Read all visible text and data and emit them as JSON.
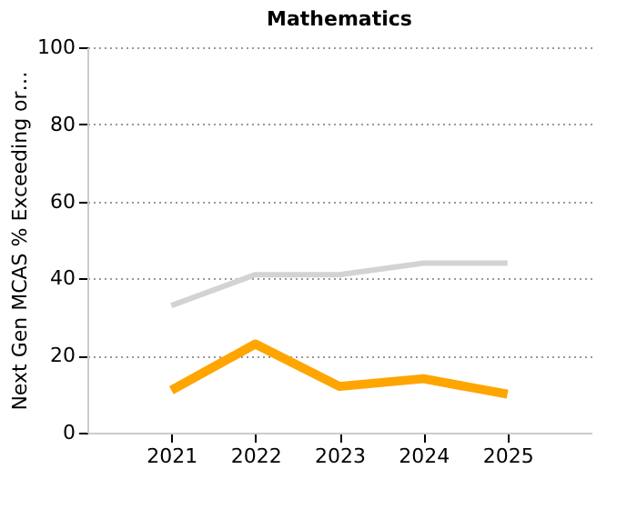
{
  "chart_data": {
    "type": "line",
    "title": "Mathematics",
    "ylabel": "Next Gen MCAS % Exceeding or…",
    "x": [
      2021,
      2022,
      2023,
      2024,
      2025
    ],
    "series": [
      {
        "color": "#d3d3d3",
        "values": [
          33,
          41,
          41,
          44,
          44
        ]
      },
      {
        "color": "#ffa500",
        "values": [
          11,
          23,
          12,
          14,
          10
        ]
      }
    ],
    "xlim": [
      2020,
      2026
    ],
    "xticks": [
      2021,
      2022,
      2023,
      2024,
      2025
    ],
    "ylim": [
      0,
      100
    ],
    "yticks": [
      0,
      20,
      40,
      60,
      80,
      100
    ],
    "grid": "y",
    "line_style": "solid",
    "marker": "none"
  }
}
